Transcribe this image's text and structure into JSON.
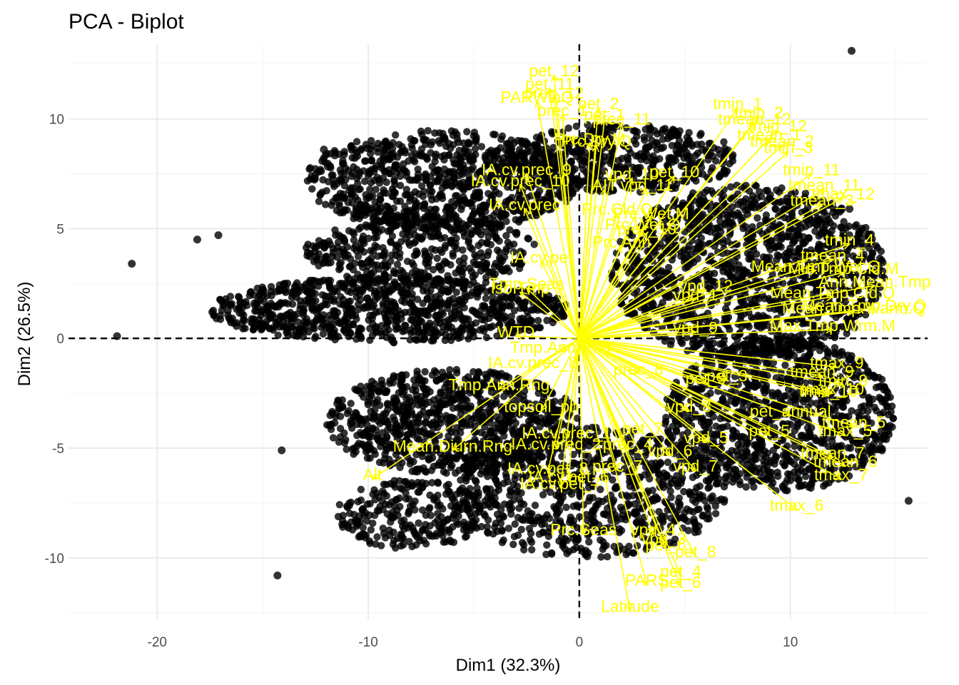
{
  "chart_data": {
    "type": "scatter",
    "title": "PCA - Biplot",
    "xlabel": "Dim1 (32.3%)",
    "ylabel": "Dim2 (26.5%)",
    "xlim": [
      -24.2,
      16.5
    ],
    "ylim": [
      -12.8,
      13.4
    ],
    "x_ticks": [
      -20,
      -10,
      0,
      10
    ],
    "y_ticks": [
      -10,
      -5,
      0,
      5,
      10
    ],
    "grid": true,
    "point_color": "#000000",
    "arrow_color": "#ffff00",
    "label_color": "#ffff00",
    "reference_lines": [
      {
        "axis": "x",
        "value": 0,
        "style": "dashed"
      },
      {
        "axis": "y",
        "value": 0,
        "style": "dashed"
      }
    ],
    "highlighted_points": [
      {
        "x": -21.9,
        "y": 0.1
      },
      {
        "x": -21.2,
        "y": 3.4
      },
      {
        "x": -14.3,
        "y": -10.8
      },
      {
        "x": -18.1,
        "y": 4.5
      },
      {
        "x": -17.1,
        "y": 4.7
      },
      {
        "x": 12.9,
        "y": 13.1
      },
      {
        "x": 15.6,
        "y": -7.4
      },
      {
        "x": -10.6,
        "y": -8.3
      },
      {
        "x": -14.1,
        "y": -5.1
      },
      {
        "x": 12.8,
        "y": 5.9
      },
      {
        "x": -12.1,
        "y": 8.6
      }
    ],
    "cluster_regions": [
      {
        "cx": -6.5,
        "cy": 7.2,
        "rx": 6.5,
        "ry": 2.3,
        "n": 900
      },
      {
        "cx": 2.0,
        "cy": 8.2,
        "rx": 5.5,
        "ry": 1.6,
        "n": 500
      },
      {
        "cx": -9.0,
        "cy": 1.3,
        "rx": 8.5,
        "ry": 1.5,
        "n": 900
      },
      {
        "cx": -7.5,
        "cy": 4.0,
        "rx": 5.5,
        "ry": 1.6,
        "n": 400
      },
      {
        "cx": 8.0,
        "cy": 3.0,
        "rx": 6.5,
        "ry": 4.0,
        "n": 1400
      },
      {
        "cx": 9.5,
        "cy": -3.5,
        "rx": 5.5,
        "ry": 3.5,
        "n": 1100
      },
      {
        "cx": -6.0,
        "cy": -3.8,
        "rx": 6.0,
        "ry": 2.4,
        "n": 900
      },
      {
        "cx": 0.5,
        "cy": -7.0,
        "rx": 6.5,
        "ry": 3.0,
        "n": 800
      },
      {
        "cx": -8.0,
        "cy": -8.0,
        "rx": 3.5,
        "ry": 1.6,
        "n": 250
      }
    ],
    "variables": [
      {
        "label": "pet_12",
        "x": -1.2,
        "y": 12.0
      },
      {
        "label": "pet_11",
        "x": -1.4,
        "y": 11.4
      },
      {
        "label": "PARWinQ",
        "x": -2.0,
        "y": 10.8
      },
      {
        "label": "prec_12",
        "x": -1.2,
        "y": 11.0
      },
      {
        "label": "prec_1",
        "x": -0.8,
        "y": 10.2
      },
      {
        "label": "pet_2",
        "x": 0.9,
        "y": 10.5
      },
      {
        "label": "pet_1",
        "x": 1.2,
        "y": 10.0
      },
      {
        "label": "prec_11",
        "x": 2.0,
        "y": 9.8
      },
      {
        "label": "Prc.Dry.M",
        "x": 0.5,
        "y": 8.9
      },
      {
        "label": "Prc.Dry.Q",
        "x": 0.8,
        "y": 8.8
      },
      {
        "label": "tmin_1",
        "x": 7.5,
        "y": 10.5
      },
      {
        "label": "tmin_2",
        "x": 8.5,
        "y": 10.1
      },
      {
        "label": "tmean_12",
        "x": 8.3,
        "y": 9.8
      },
      {
        "label": "tmin_12",
        "x": 9.4,
        "y": 9.5
      },
      {
        "label": "tmean_1",
        "x": 9.0,
        "y": 9.1
      },
      {
        "label": "tmean_2",
        "x": 9.6,
        "y": 8.8
      },
      {
        "label": "tmin_3",
        "x": 9.9,
        "y": 8.5
      },
      {
        "label": "IA.cv.prec_9",
        "x": -2.5,
        "y": 7.5
      },
      {
        "label": "IA.cv.prec_10",
        "x": -2.8,
        "y": 7.0
      },
      {
        "label": "vpd_10",
        "x": 2.5,
        "y": 7.3
      },
      {
        "label": "pet_10",
        "x": 4.5,
        "y": 7.4
      },
      {
        "label": "AIT",
        "x": 1.2,
        "y": 6.8
      },
      {
        "label": "vpd_11",
        "x": 3.2,
        "y": 6.8
      },
      {
        "label": "tmin_11",
        "x": 11.0,
        "y": 7.5
      },
      {
        "label": "tmean_11",
        "x": 11.6,
        "y": 6.8
      },
      {
        "label": "tmax_12",
        "x": 12.5,
        "y": 6.4
      },
      {
        "label": "tmean_3",
        "x": 11.5,
        "y": 6.1
      },
      {
        "label": "IA.cv.prec",
        "x": -2.6,
        "y": 5.9
      },
      {
        "label": "Prc.Cld.Q",
        "x": 1.8,
        "y": 5.7
      },
      {
        "label": "Prc.Wet.M",
        "x": 3.4,
        "y": 5.5
      },
      {
        "label": "Prc.Wet.Q",
        "x": 3.0,
        "y": 5.0
      },
      {
        "label": "prec_10",
        "x": 3.2,
        "y": 4.8
      },
      {
        "label": "Prc.Ann",
        "x": 2.0,
        "y": 4.2
      },
      {
        "label": "IA.cv.pet",
        "x": -1.8,
        "y": 3.5
      },
      {
        "label": "tmin_4",
        "x": 12.8,
        "y": 4.3
      },
      {
        "label": "tmean_4",
        "x": 12.0,
        "y": 3.6
      },
      {
        "label": "Mean.Tmp.Wet.Q",
        "x": 11.2,
        "y": 3.1
      },
      {
        "label": "Min.Tmp.Cld.M",
        "x": 12.5,
        "y": 3.0
      },
      {
        "label": "Ann.Mean.Tmp",
        "x": 14.0,
        "y": 2.4
      },
      {
        "label": "Mean.Tmp.Cld.Q",
        "x": 12.0,
        "y": 1.9
      },
      {
        "label": "vpd_12",
        "x": 6.0,
        "y": 2.2
      },
      {
        "label": "vpd_1",
        "x": 5.5,
        "y": 1.8
      },
      {
        "label": "Tmp.Seas",
        "x": -2.5,
        "y": 2.3
      },
      {
        "label": "Iso.Tmp",
        "x": -2.8,
        "y": 2.1
      },
      {
        "label": "Mean.Tmp.Warm.Q",
        "x": 13.0,
        "y": 1.2
      },
      {
        "label": "Mean.Tmp.Dry.Q",
        "x": 13.5,
        "y": 1.3
      },
      {
        "label": "Tmp.Ann.Rng",
        "x": -0.9,
        "y": -0.6
      },
      {
        "label": "vpd_9",
        "x": 5.5,
        "y": 0.3
      },
      {
        "label": "Max.Tmp.Wrm.M",
        "x": 12.0,
        "y": 0.4
      },
      {
        "label": "WTD",
        "x": -3.0,
        "y": 0.1
      },
      {
        "label": "IA.cv.prec_8",
        "x": -2.2,
        "y": -1.3
      },
      {
        "label": "prec_8",
        "x": 2.8,
        "y": -1.6
      },
      {
        "label": "tmax_9",
        "x": 12.2,
        "y": -1.3
      },
      {
        "label": "tmean_9",
        "x": 11.5,
        "y": -1.7
      },
      {
        "label": "pet_3",
        "x": 7.0,
        "y": -1.9
      },
      {
        "label": "pet_9",
        "x": 6.0,
        "y": -2.0
      },
      {
        "label": "tmin_9",
        "x": 12.5,
        "y": -2.1
      },
      {
        "label": "tmax_10",
        "x": 12.0,
        "y": -2.5
      },
      {
        "label": "tmin_10",
        "x": 11.8,
        "y": -2.6
      },
      {
        "label": "Tmp.Ann.Rng",
        "x": -3.8,
        "y": -2.3
      },
      {
        "label": "topsoil_ph",
        "x": -1.8,
        "y": -3.3
      },
      {
        "label": "vpd_8",
        "x": 5.2,
        "y": -3.3
      },
      {
        "label": "pet_annual",
        "x": 10.0,
        "y": -3.5
      },
      {
        "label": "tmean_5",
        "x": 13.0,
        "y": -4.0
      },
      {
        "label": "IA.cv.prec_1",
        "x": -0.6,
        "y": -4.5
      },
      {
        "label": "pet_7",
        "x": 3.0,
        "y": -4.3
      },
      {
        "label": "vpd_5",
        "x": 6.0,
        "y": -4.7
      },
      {
        "label": "pet_5",
        "x": 9.0,
        "y": -4.4
      },
      {
        "label": "tmax_5",
        "x": 12.6,
        "y": -4.4
      },
      {
        "label": "IA.cv.prec_2",
        "x": -1.1,
        "y": -5.0
      },
      {
        "label": "prec_4",
        "x": 2.3,
        "y": -5.0
      },
      {
        "label": "vpd_6",
        "x": 4.3,
        "y": -5.3
      },
      {
        "label": "Alt",
        "x": -9.8,
        "y": -6.4
      },
      {
        "label": "Mean.Diurn.Rng",
        "x": -6.0,
        "y": -5.1
      },
      {
        "label": "tmean_7",
        "x": 12.0,
        "y": -5.4
      },
      {
        "label": "IA.cv.pet_8",
        "x": -1.5,
        "y": -6.1
      },
      {
        "label": "prec_7",
        "x": 1.8,
        "y": -6.0
      },
      {
        "label": "vpd_7",
        "x": 5.5,
        "y": -6.0
      },
      {
        "label": "tmean_6",
        "x": 12.6,
        "y": -5.8
      },
      {
        "label": "tmax_7",
        "x": 12.4,
        "y": -6.4
      },
      {
        "label": "tmax_6",
        "x": 10.3,
        "y": -7.8
      },
      {
        "label": "IA.cv.pet_7",
        "x": -0.9,
        "y": -6.8
      },
      {
        "label": "IA.cv.pet_6",
        "x": -0.5,
        "y": -6.5
      },
      {
        "label": "Prc.Seas",
        "x": 0.2,
        "y": -8.9
      },
      {
        "label": "vpd_4",
        "x": 3.5,
        "y": -8.9
      },
      {
        "label": "vpd_3",
        "x": 4.0,
        "y": -9.3
      },
      {
        "label": "pet_6",
        "x": 4.1,
        "y": -9.6
      },
      {
        "label": "pet_8",
        "x": 5.5,
        "y": -9.9
      },
      {
        "label": "PARS",
        "x": 3.2,
        "y": -11.2
      },
      {
        "label": "pet_4",
        "x": 4.8,
        "y": -10.8
      },
      {
        "label": "pet_6",
        "x": 4.8,
        "y": -11.3
      },
      {
        "label": "Latitude",
        "x": 2.4,
        "y": -12.4
      }
    ]
  }
}
